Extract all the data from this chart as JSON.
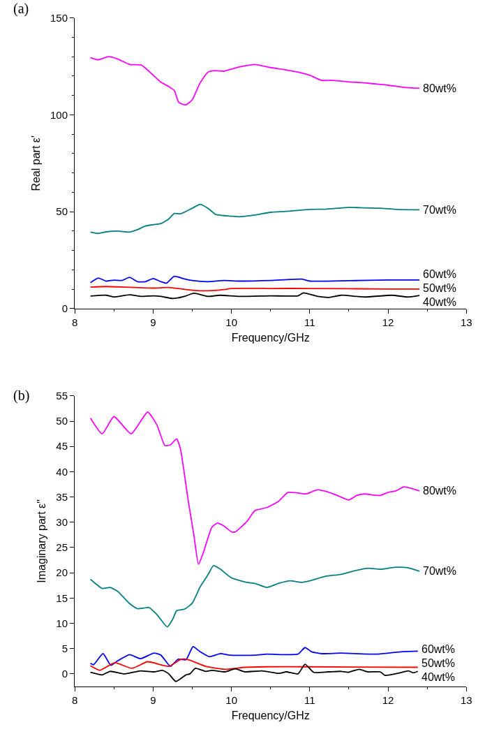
{
  "chart_data": [
    {
      "type": "line",
      "title": "(a)",
      "xlabel": "Frequency/GHz",
      "ylabel": "Real part ε'",
      "xlim": [
        8,
        13
      ],
      "xticks": [
        8,
        9,
        10,
        11,
        12,
        13
      ],
      "ylim": [
        0,
        150
      ],
      "yticks": [
        0,
        50,
        100,
        150
      ],
      "legend": false,
      "marker": "none",
      "line_style": "solid",
      "series": [
        {
          "name": "80wt%",
          "color": "#ff00ff",
          "x": [
            8.2,
            8.3,
            8.43,
            8.55,
            8.7,
            8.85,
            9.0,
            9.1,
            9.2,
            9.27,
            9.33,
            9.42,
            9.5,
            9.6,
            9.7,
            9.8,
            9.9,
            10.0,
            10.1,
            10.3,
            10.5,
            10.7,
            10.9,
            11.0,
            11.15,
            11.3,
            11.5,
            11.7,
            11.9,
            12.0,
            12.2,
            12.4
          ],
          "values": [
            129.5,
            128.4,
            130,
            128.8,
            126,
            125.7,
            120.5,
            116.8,
            114.6,
            112.6,
            106.3,
            105.2,
            107.8,
            116.5,
            122,
            122.8,
            122.5,
            123.6,
            124.7,
            126,
            124.4,
            123.2,
            121.6,
            120.5,
            117.8,
            117.8,
            117,
            116.5,
            115.7,
            115.3,
            114.2,
            113.7
          ]
        },
        {
          "name": "70wt%",
          "color": "#008080",
          "x": [
            8.2,
            8.3,
            8.4,
            8.55,
            8.7,
            8.8,
            8.9,
            9.0,
            9.1,
            9.2,
            9.27,
            9.35,
            9.5,
            9.6,
            9.7,
            9.8,
            10.0,
            10.1,
            10.3,
            10.5,
            10.7,
            11.0,
            11.2,
            11.5,
            11.7,
            11.9,
            12.1,
            12.4
          ],
          "values": [
            39.5,
            38.8,
            39.6,
            40,
            39.5,
            40.7,
            42.6,
            43.3,
            43.9,
            46.3,
            49.1,
            48.9,
            51.8,
            53.8,
            51.8,
            48.6,
            47.7,
            47.4,
            48.3,
            49.7,
            50.2,
            51.2,
            51.3,
            52.3,
            52,
            51.8,
            51.2,
            51
          ]
        },
        {
          "name": "60wt%",
          "color": "#0000ff",
          "x": [
            8.2,
            8.3,
            8.4,
            8.5,
            8.6,
            8.7,
            8.8,
            8.9,
            9.0,
            9.1,
            9.17,
            9.27,
            9.4,
            9.5,
            9.7,
            9.9,
            10.1,
            10.5,
            10.9,
            11.0,
            11.5,
            12.0,
            12.4
          ],
          "values": [
            13.4,
            15.8,
            14.2,
            14.7,
            14.5,
            16.1,
            13.9,
            13.9,
            15.5,
            13.9,
            13.1,
            16.7,
            15.3,
            14.5,
            13.9,
            14.5,
            14.2,
            14.5,
            15.2,
            14.2,
            14.4,
            14.8,
            14.8
          ]
        },
        {
          "name": "50wt%",
          "color": "#ff0000",
          "x": [
            8.2,
            8.4,
            9.0,
            9.2,
            9.5,
            9.7,
            9.9,
            10.0,
            10.5,
            11.0,
            12.0,
            12.4
          ],
          "values": [
            11.1,
            11.4,
            10.6,
            10.9,
            9.5,
            9.2,
            9.8,
            10.4,
            10.4,
            10.4,
            10.1,
            10.1
          ]
        },
        {
          "name": "40wt%",
          "color": "#000000",
          "x": [
            8.2,
            8.4,
            8.5,
            8.7,
            8.85,
            9.0,
            9.1,
            9.25,
            9.4,
            9.52,
            9.7,
            9.85,
            10.1,
            10.5,
            10.85,
            10.92,
            11.1,
            11.25,
            11.4,
            11.7,
            12.05,
            12.25,
            12.4
          ],
          "values": [
            6.5,
            6.9,
            6.0,
            7.1,
            6.3,
            6.6,
            6.3,
            5.2,
            6.3,
            7.9,
            6.3,
            6.9,
            6.3,
            6.6,
            6.6,
            8.1,
            6.3,
            5.8,
            6.9,
            6.0,
            6.9,
            6.0,
            6.8
          ]
        }
      ]
    },
    {
      "type": "line",
      "title": "(b)",
      "xlabel": "Frequency/GHz",
      "ylabel": "Imaginary part ε\"",
      "xlim": [
        8,
        13
      ],
      "xticks": [
        8,
        9,
        10,
        11,
        12,
        13
      ],
      "ylim": [
        -2.5,
        55
      ],
      "yticks": [
        0,
        5,
        10,
        15,
        20,
        25,
        30,
        35,
        40,
        45,
        50,
        55
      ],
      "legend": false,
      "marker": "none",
      "line_style": "solid",
      "series": [
        {
          "name": "80wt%",
          "color": "#ff00ff",
          "x": [
            8.2,
            8.35,
            8.5,
            8.72,
            8.93,
            9.05,
            9.15,
            9.22,
            9.3,
            9.35,
            9.45,
            9.52,
            9.58,
            9.65,
            9.75,
            9.82,
            9.9,
            10.0,
            10.05,
            10.2,
            10.3,
            10.45,
            10.6,
            10.72,
            10.85,
            10.95,
            11.1,
            11.25,
            11.35,
            11.5,
            11.6,
            11.7,
            11.8,
            11.9,
            12.0,
            12.1,
            12.2,
            12.3,
            12.4
          ],
          "values": [
            50.6,
            47.5,
            50.9,
            47.5,
            51.8,
            49.2,
            45.2,
            45.3,
            46.5,
            44.4,
            34.1,
            27.5,
            21.7,
            24.4,
            29,
            29.8,
            29.3,
            28.1,
            28.1,
            30.2,
            32.3,
            32.9,
            34.1,
            35.9,
            35.8,
            35.6,
            36.4,
            35.9,
            35.3,
            34.4,
            35.3,
            35.6,
            35.4,
            35.3,
            35.9,
            36.2,
            37,
            36.7,
            36.2
          ]
        },
        {
          "name": "70wt%",
          "color": "#008080",
          "x": [
            8.2,
            8.35,
            8.45,
            8.55,
            8.7,
            8.8,
            8.95,
            9.05,
            9.18,
            9.25,
            9.3,
            9.4,
            9.5,
            9.6,
            9.7,
            9.77,
            9.85,
            10.0,
            10.2,
            10.3,
            10.45,
            10.6,
            10.75,
            10.9,
            11.0,
            11.2,
            11.4,
            11.6,
            11.75,
            11.9,
            12.1,
            12.25,
            12.4
          ],
          "values": [
            18.7,
            16.9,
            17.1,
            16.3,
            13.9,
            12.9,
            13.1,
            11.7,
            9.3,
            10.8,
            12.5,
            12.8,
            14,
            17.2,
            19.6,
            21.4,
            20.8,
            19,
            18.1,
            17.9,
            17.1,
            17.9,
            18.4,
            18.1,
            18.4,
            19.3,
            19.7,
            20.5,
            20.9,
            20.7,
            21.1,
            21,
            20.3
          ]
        },
        {
          "name": "60wt%",
          "color": "#0000ff",
          "x": [
            8.2,
            8.24,
            8.36,
            8.46,
            8.54,
            8.7,
            8.84,
            9.01,
            9.1,
            9.22,
            9.32,
            9.42,
            9.51,
            9.59,
            9.72,
            9.86,
            9.98,
            10.3,
            10.45,
            10.7,
            10.85,
            10.94,
            11.02,
            11.14,
            11.4,
            11.87,
            12.18,
            12.38
          ],
          "values": [
            2.1,
            1.8,
            4.0,
            1.7,
            2.5,
            3.8,
            3.0,
            4.1,
            3.7,
            1.5,
            2.9,
            2.8,
            5.4,
            4.5,
            3.4,
            4.0,
            3.7,
            3.7,
            3.9,
            3.8,
            3.9,
            5.2,
            4.4,
            4.0,
            4.1,
            3.9,
            4.4,
            4.5
          ]
        },
        {
          "name": "50wt%",
          "color": "#ff0000",
          "x": [
            8.2,
            8.32,
            8.51,
            8.73,
            8.93,
            9.2,
            9.36,
            9.45,
            9.67,
            9.92,
            10.17,
            10.45,
            10.92,
            12.38
          ],
          "values": [
            1.6,
            0.7,
            2.2,
            1.1,
            2.4,
            1.5,
            2.9,
            2.8,
            1.5,
            0.9,
            1.3,
            1.4,
            1.4,
            1.3
          ]
        },
        {
          "name": "40wt%",
          "color": "#000000",
          "x": [
            8.2,
            8.35,
            8.45,
            8.63,
            8.84,
            9.01,
            9.12,
            9.2,
            9.29,
            9.42,
            9.47,
            9.54,
            9.67,
            9.75,
            9.92,
            10.05,
            10.17,
            10.39,
            10.61,
            10.7,
            10.85,
            10.94,
            11.05,
            11.24,
            11.4,
            11.49,
            11.63,
            11.74,
            11.9,
            11.96,
            12.15,
            12.26,
            12.32,
            12.38
          ],
          "values": [
            0.3,
            -0.2,
            0.5,
            0,
            0.6,
            0.4,
            0.7,
            0,
            -1.5,
            -0.2,
            0,
            1.1,
            0.5,
            0.7,
            0.4,
            1.0,
            0.4,
            0.6,
            0.1,
            0.4,
            0,
            1.9,
            0.3,
            0.4,
            0.5,
            0.3,
            0.9,
            0.4,
            0.4,
            -0.3,
            0.2,
            0.6,
            0.2,
            0.5
          ]
        }
      ]
    }
  ]
}
